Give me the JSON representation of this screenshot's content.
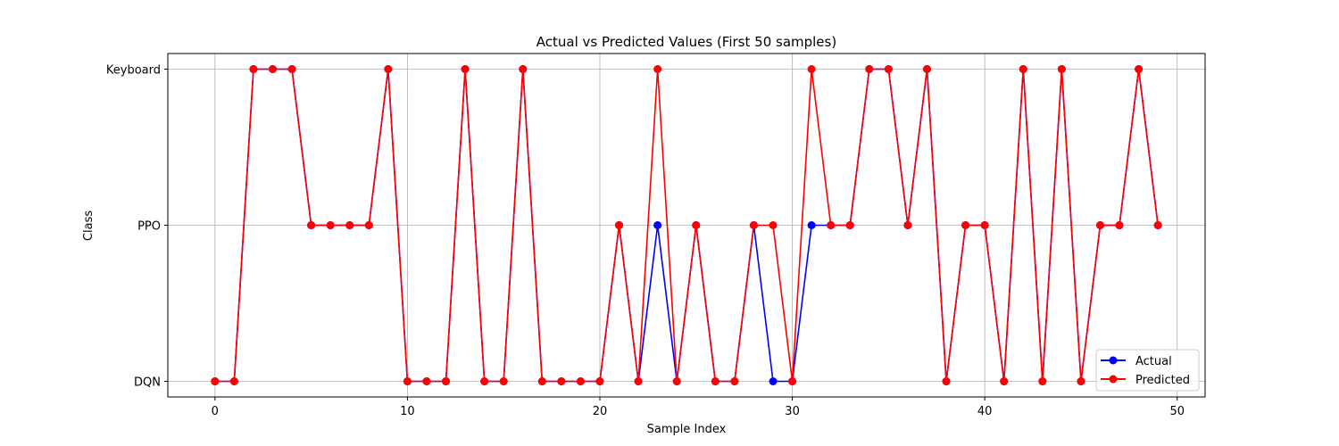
{
  "chart_data": {
    "type": "line",
    "title": "Actual vs Predicted Values (First 50 samples)",
    "xlabel": "Sample Index",
    "ylabel": "Class",
    "xlim": [
      -2.45,
      51.45
    ],
    "ylim": [
      -0.1,
      2.1
    ],
    "x_ticks": [
      0,
      10,
      20,
      30,
      40,
      50
    ],
    "x_tick_labels": [
      "0",
      "10",
      "20",
      "30",
      "40",
      "50"
    ],
    "y_ticks": [
      0,
      1,
      2
    ],
    "y_tick_labels": [
      "DQN",
      "PPO",
      "Keyboard"
    ],
    "grid": true,
    "legend_position": "lower right",
    "x": [
      0,
      1,
      2,
      3,
      4,
      5,
      6,
      7,
      8,
      9,
      10,
      11,
      12,
      13,
      14,
      15,
      16,
      17,
      18,
      19,
      20,
      21,
      22,
      23,
      24,
      25,
      26,
      27,
      28,
      29,
      30,
      31,
      32,
      33,
      34,
      35,
      36,
      37,
      38,
      39,
      40,
      41,
      42,
      43,
      44,
      45,
      46,
      47,
      48,
      49
    ],
    "series": [
      {
        "name": "Actual",
        "color": "#0000ff",
        "marker": "circle",
        "values": [
          0,
          0,
          2,
          2,
          2,
          1,
          1,
          1,
          1,
          2,
          0,
          0,
          0,
          2,
          0,
          0,
          2,
          0,
          0,
          0,
          0,
          1,
          0,
          1,
          0,
          1,
          0,
          0,
          1,
          0,
          0,
          1,
          1,
          1,
          2,
          2,
          1,
          2,
          0,
          1,
          1,
          0,
          2,
          0,
          2,
          0,
          1,
          1,
          2,
          1
        ]
      },
      {
        "name": "Predicted",
        "color": "#ff0000",
        "marker": "circle",
        "values": [
          0,
          0,
          2,
          2,
          2,
          1,
          1,
          1,
          1,
          2,
          0,
          0,
          0,
          2,
          0,
          0,
          2,
          0,
          0,
          0,
          0,
          1,
          0,
          2,
          0,
          1,
          0,
          0,
          1,
          1,
          0,
          2,
          1,
          1,
          2,
          2,
          1,
          2,
          0,
          1,
          1,
          0,
          2,
          0,
          2,
          0,
          1,
          1,
          2,
          1
        ]
      }
    ]
  }
}
